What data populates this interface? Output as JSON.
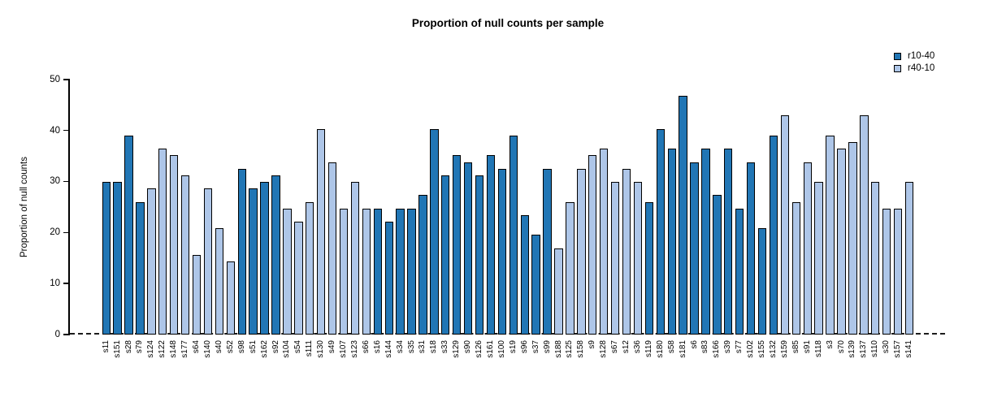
{
  "chart_data": {
    "type": "bar",
    "title": "Proportion of null counts per sample",
    "xlabel": "",
    "ylabel": "Proportion of null counts",
    "ylim": [
      0,
      50
    ],
    "yticks": [
      0,
      10,
      20,
      30,
      40,
      50
    ],
    "grid": false,
    "legend_position": "top-right",
    "baseline": {
      "value": 0,
      "style": "dashed",
      "color": "#1c1c1c"
    },
    "legend": [
      {
        "label": "r10-40",
        "color": "#2176b5"
      },
      {
        "label": "r40-10",
        "color": "#aec6e8"
      }
    ],
    "bars": [
      {
        "label": "s11",
        "value": 29.9,
        "group": "r10-40"
      },
      {
        "label": "s151",
        "value": 29.9,
        "group": "r10-40"
      },
      {
        "label": "s28",
        "value": 39.0,
        "group": "r10-40"
      },
      {
        "label": "s79",
        "value": 26.0,
        "group": "r10-40"
      },
      {
        "label": "s124",
        "value": 28.6,
        "group": "r40-10"
      },
      {
        "label": "s122",
        "value": 36.4,
        "group": "r40-10"
      },
      {
        "label": "s148",
        "value": 35.1,
        "group": "r40-10"
      },
      {
        "label": "s177",
        "value": 31.2,
        "group": "r40-10"
      },
      {
        "label": "s64",
        "value": 15.6,
        "group": "r40-10"
      },
      {
        "label": "s140",
        "value": 28.6,
        "group": "r40-10"
      },
      {
        "label": "s40",
        "value": 20.8,
        "group": "r40-10"
      },
      {
        "label": "s52",
        "value": 14.3,
        "group": "r40-10"
      },
      {
        "label": "s98",
        "value": 32.5,
        "group": "r10-40"
      },
      {
        "label": "s51",
        "value": 28.6,
        "group": "r10-40"
      },
      {
        "label": "s162",
        "value": 29.9,
        "group": "r10-40"
      },
      {
        "label": "s92",
        "value": 31.2,
        "group": "r10-40"
      },
      {
        "label": "s104",
        "value": 24.7,
        "group": "r40-10"
      },
      {
        "label": "s54",
        "value": 22.1,
        "group": "r40-10"
      },
      {
        "label": "s111",
        "value": 26.0,
        "group": "r40-10"
      },
      {
        "label": "s130",
        "value": 40.3,
        "group": "r40-10"
      },
      {
        "label": "s49",
        "value": 33.8,
        "group": "r40-10"
      },
      {
        "label": "s107",
        "value": 24.7,
        "group": "r40-10"
      },
      {
        "label": "s123",
        "value": 29.9,
        "group": "r40-10"
      },
      {
        "label": "s66",
        "value": 24.7,
        "group": "r40-10"
      },
      {
        "label": "s16",
        "value": 24.7,
        "group": "r10-40"
      },
      {
        "label": "s144",
        "value": 22.1,
        "group": "r10-40"
      },
      {
        "label": "s34",
        "value": 24.7,
        "group": "r10-40"
      },
      {
        "label": "s35",
        "value": 24.7,
        "group": "r10-40"
      },
      {
        "label": "s31",
        "value": 27.3,
        "group": "r10-40"
      },
      {
        "label": "s18",
        "value": 40.3,
        "group": "r10-40"
      },
      {
        "label": "s33",
        "value": 31.2,
        "group": "r10-40"
      },
      {
        "label": "s129",
        "value": 35.1,
        "group": "r10-40"
      },
      {
        "label": "s90",
        "value": 33.8,
        "group": "r10-40"
      },
      {
        "label": "s126",
        "value": 31.2,
        "group": "r10-40"
      },
      {
        "label": "s161",
        "value": 35.1,
        "group": "r10-40"
      },
      {
        "label": "s100",
        "value": 32.5,
        "group": "r10-40"
      },
      {
        "label": "s19",
        "value": 39.0,
        "group": "r10-40"
      },
      {
        "label": "s96",
        "value": 23.4,
        "group": "r10-40"
      },
      {
        "label": "s37",
        "value": 19.5,
        "group": "r10-40"
      },
      {
        "label": "s99",
        "value": 32.5,
        "group": "r10-40"
      },
      {
        "label": "s188",
        "value": 16.9,
        "group": "r40-10"
      },
      {
        "label": "s125",
        "value": 26.0,
        "group": "r40-10"
      },
      {
        "label": "s158",
        "value": 32.5,
        "group": "r40-10"
      },
      {
        "label": "s9",
        "value": 35.1,
        "group": "r40-10"
      },
      {
        "label": "s128",
        "value": 36.4,
        "group": "r40-10"
      },
      {
        "label": "s67",
        "value": 29.9,
        "group": "r40-10"
      },
      {
        "label": "s12",
        "value": 32.5,
        "group": "r40-10"
      },
      {
        "label": "s36",
        "value": 29.9,
        "group": "r40-10"
      },
      {
        "label": "s119",
        "value": 26.0,
        "group": "r10-40"
      },
      {
        "label": "s180",
        "value": 40.3,
        "group": "r10-40"
      },
      {
        "label": "s58",
        "value": 36.4,
        "group": "r10-40"
      },
      {
        "label": "s181",
        "value": 46.8,
        "group": "r10-40"
      },
      {
        "label": "s6",
        "value": 33.8,
        "group": "r10-40"
      },
      {
        "label": "s83",
        "value": 36.4,
        "group": "r10-40"
      },
      {
        "label": "s166",
        "value": 27.3,
        "group": "r10-40"
      },
      {
        "label": "s39",
        "value": 36.4,
        "group": "r10-40"
      },
      {
        "label": "s77",
        "value": 24.7,
        "group": "r10-40"
      },
      {
        "label": "s102",
        "value": 33.8,
        "group": "r10-40"
      },
      {
        "label": "s155",
        "value": 20.8,
        "group": "r10-40"
      },
      {
        "label": "s132",
        "value": 39.0,
        "group": "r10-40"
      },
      {
        "label": "s159",
        "value": 42.9,
        "group": "r40-10"
      },
      {
        "label": "s85",
        "value": 26.0,
        "group": "r40-10"
      },
      {
        "label": "s91",
        "value": 33.8,
        "group": "r40-10"
      },
      {
        "label": "s118",
        "value": 29.9,
        "group": "r40-10"
      },
      {
        "label": "s3",
        "value": 39.0,
        "group": "r40-10"
      },
      {
        "label": "s70",
        "value": 36.4,
        "group": "r40-10"
      },
      {
        "label": "s139",
        "value": 37.7,
        "group": "r40-10"
      },
      {
        "label": "s137",
        "value": 42.9,
        "group": "r40-10"
      },
      {
        "label": "s110",
        "value": 29.9,
        "group": "r40-10"
      },
      {
        "label": "s30",
        "value": 24.7,
        "group": "r40-10"
      },
      {
        "label": "s157",
        "value": 24.7,
        "group": "r40-10"
      },
      {
        "label": "s141",
        "value": 29.9,
        "group": "r40-10"
      }
    ]
  }
}
